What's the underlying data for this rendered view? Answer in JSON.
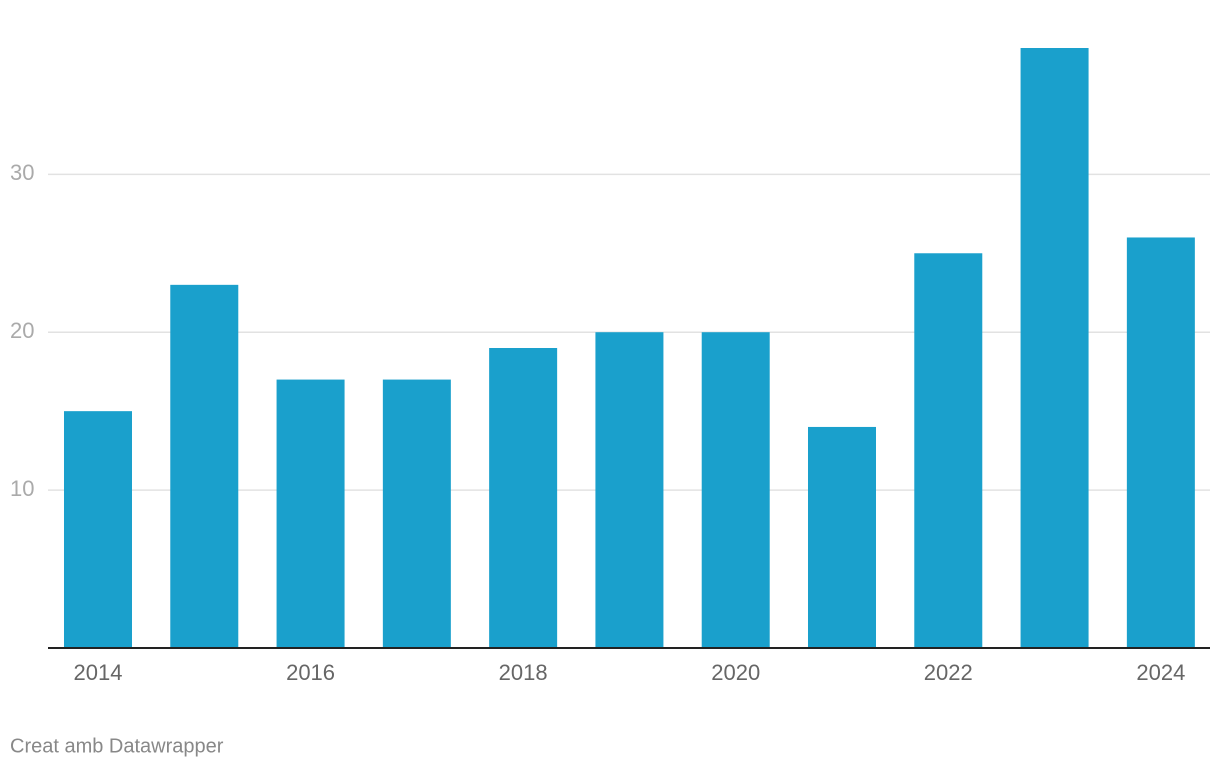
{
  "chart_data": {
    "type": "bar",
    "categories": [
      "2014",
      null,
      "2016",
      null,
      "2018",
      null,
      "2020",
      null,
      "2022",
      null,
      "2024"
    ],
    "values": [
      15,
      23,
      17,
      17,
      19,
      20,
      20,
      14,
      25,
      38,
      26
    ],
    "color": "#1aa0cc",
    "ylim": [
      0,
      38
    ],
    "yticks": [
      10,
      20,
      30
    ],
    "grid": true,
    "footer": "Creat amb Datawrapper"
  }
}
